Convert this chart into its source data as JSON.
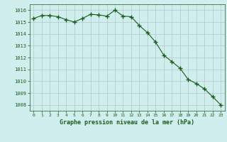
{
  "x": [
    0,
    1,
    2,
    3,
    4,
    5,
    6,
    7,
    8,
    9,
    10,
    11,
    12,
    13,
    14,
    15,
    16,
    17,
    18,
    19,
    20,
    21,
    22,
    23
  ],
  "y": [
    1015.3,
    1015.55,
    1015.55,
    1015.45,
    1015.2,
    1015.0,
    1015.3,
    1015.65,
    1015.6,
    1015.5,
    1016.0,
    1015.5,
    1015.45,
    1014.7,
    1014.1,
    1013.3,
    1012.2,
    1011.65,
    1011.1,
    1010.15,
    1009.8,
    1009.35,
    1008.7,
    1008.0
  ],
  "line_color": "#1a5c1a",
  "marker": "+",
  "marker_size": 4,
  "marker_color": "#1a5c1a",
  "bg_color": "#d0eeee",
  "grid_color": "#b0c8c8",
  "xlabel": "Graphe pression niveau de la mer (hPa)",
  "xlabel_color": "#1a5c1a",
  "tick_color": "#1a5c1a",
  "ylim": [
    1007.5,
    1016.5
  ],
  "yticks": [
    1008,
    1009,
    1010,
    1011,
    1012,
    1013,
    1014,
    1015,
    1016
  ],
  "xlim": [
    -0.5,
    23.5
  ],
  "xticks": [
    0,
    1,
    2,
    3,
    4,
    5,
    6,
    7,
    8,
    9,
    10,
    11,
    12,
    13,
    14,
    15,
    16,
    17,
    18,
    19,
    20,
    21,
    22,
    23
  ]
}
